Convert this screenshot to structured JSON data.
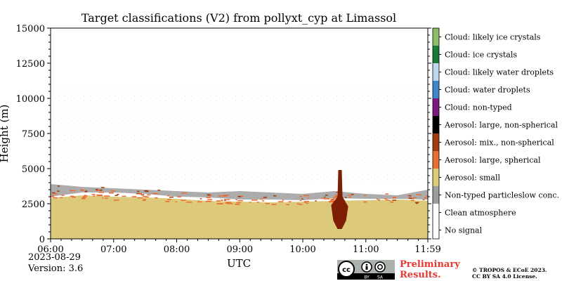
{
  "chart_data": {
    "type": "heatmap",
    "title": "Target classifications (V2) from pollyxt_cyp at Limassol",
    "xlabel": "UTC",
    "ylabel": "Height (m)",
    "x_ticks": [
      "06:00",
      "07:00",
      "08:00",
      "09:00",
      "10:00",
      "11:00",
      "11:59"
    ],
    "x_range_hours": [
      6.0,
      11.983
    ],
    "y_ticks": [
      0,
      2500,
      5000,
      7500,
      10000,
      12500,
      15000
    ],
    "ylim": [
      0,
      15000
    ],
    "grid": false,
    "legend_placement": "right colorbar",
    "classes": [
      {
        "label": "No signal",
        "color": "#ffffff"
      },
      {
        "label": "Clean atmosphere",
        "color": "#ffffff"
      },
      {
        "label": "Non-typed particleslow conc.",
        "color": "#9d9d9d"
      },
      {
        "label": "Aerosol: small",
        "color": "#dcc97a"
      },
      {
        "label": "Aerosol: large, spherical",
        "color": "#ea6d33"
      },
      {
        "label": "Aerosol: mix., non-spherical",
        "color": "#a23d0f"
      },
      {
        "label": "Aerosol: large, non-spherical",
        "color": "#000000"
      },
      {
        "label": "Cloud: non-typed",
        "color": "#7a1c7f"
      },
      {
        "label": "Cloud: water droplets",
        "color": "#3f86c6"
      },
      {
        "label": "Cloud: likely water droplets",
        "color": "#bed8f2"
      },
      {
        "label": "Cloud: ice crystals",
        "color": "#1b7a35"
      },
      {
        "label": "Cloud: likely ice crystals",
        "color": "#8bbd6a"
      }
    ],
    "layers": [
      {
        "class": "Aerosol: small",
        "top_m": [
          2900,
          3100,
          3000,
          2950,
          2850,
          2700,
          2650,
          2600,
          2650,
          2700,
          2750,
          2800,
          2700
        ]
      },
      {
        "class": "Non-typed particleslow conc.",
        "base_m": [
          3000,
          3300,
          3300,
          3200,
          3000,
          2950,
          2800,
          2800,
          2750,
          2900,
          2850,
          2850,
          2800
        ],
        "top_m": [
          3900,
          3700,
          3600,
          3500,
          3400,
          3300,
          3400,
          3300,
          3200,
          3400,
          3200,
          3100,
          3500
        ]
      },
      {
        "class": "Aerosol: mix., non-spherical",
        "x_start_h": 10.45,
        "x_end_h": 10.72,
        "base_m": 700,
        "top_m": 4900
      }
    ],
    "layer_times_h": [
      6.0,
      6.5,
      7.0,
      7.5,
      8.0,
      8.5,
      9.0,
      9.5,
      10.0,
      10.5,
      11.0,
      11.5,
      11.983
    ]
  },
  "footer": {
    "date": "2023-08-29",
    "version": "Version: 3.6",
    "preliminary_line1": "Preliminary",
    "preliminary_line2": "Results.",
    "credit_line1": "© TROPOS & ECoE 2023.",
    "credit_line2": "CC BY SA 4.0 License.",
    "license_badge": {
      "by": "BY",
      "sa": "SA",
      "icon": "cc-by-sa-icon"
    }
  }
}
